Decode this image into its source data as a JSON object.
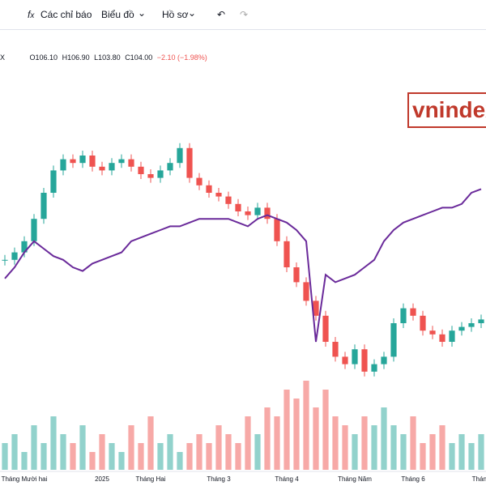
{
  "toolbar": {
    "indicators": "Các chỉ báo",
    "chart": "Biểu đồ",
    "profile": "Hồ sơ"
  },
  "legend": {
    "symbol": "X",
    "open": "O106.10",
    "high": "H106.90",
    "low": "L103.80",
    "close": "C104.00",
    "change": "−2.10 (−1.98%)"
  },
  "watermark": "vnindex",
  "chart_data": {
    "type": "candlestick",
    "categories": [
      null,
      null,
      "Tháng Mười hai",
      null,
      null,
      null,
      null,
      null,
      null,
      null,
      "2025",
      null,
      null,
      null,
      null,
      "Tháng Hai",
      null,
      null,
      null,
      null,
      null,
      null,
      "Tháng 3",
      null,
      null,
      null,
      null,
      null,
      null,
      "Tháng 4",
      null,
      null,
      null,
      null,
      null,
      null,
      "Tháng Năm",
      null,
      null,
      null,
      null,
      null,
      "Tháng 6",
      null,
      null,
      null,
      null,
      null,
      null,
      "Tháng"
    ],
    "values": [
      132,
      134,
      137,
      143,
      150,
      156,
      159,
      158,
      160,
      157,
      156,
      158,
      159,
      157,
      155,
      154,
      156,
      158,
      162,
      154,
      152,
      150,
      149,
      147,
      145,
      144,
      146,
      143,
      137,
      130,
      126,
      121,
      117,
      110,
      106,
      104,
      108,
      102,
      104,
      106,
      115,
      119,
      117,
      113,
      112,
      110,
      113,
      114,
      115,
      116
    ],
    "color_up": "#26a69a",
    "color_down": "#ef5350",
    "ylim": [
      80,
      180
    ],
    "line": {
      "color": "#6a2a9a",
      "axis": "y2",
      "values": [
        47,
        50,
        54,
        57,
        55,
        53,
        52,
        50,
        49,
        51,
        52,
        53,
        54,
        57,
        58,
        59,
        60,
        61,
        61,
        62,
        63,
        63,
        63,
        63,
        62,
        61,
        63,
        64,
        63,
        62,
        60,
        57,
        30,
        48,
        46,
        47,
        48,
        50,
        52,
        57,
        60,
        62,
        63,
        64,
        65,
        66,
        66,
        67,
        70,
        71
      ]
    },
    "y2lim": [
      0,
      100
    ],
    "volume": {
      "values": [
        3,
        4,
        2,
        5,
        3,
        6,
        4,
        3,
        5,
        2,
        4,
        3,
        2,
        5,
        3,
        6,
        3,
        4,
        2,
        3,
        4,
        3,
        5,
        4,
        3,
        6,
        4,
        7,
        6,
        9,
        8,
        10,
        7,
        9,
        6,
        5,
        4,
        6,
        5,
        7,
        5,
        4,
        6,
        3,
        4,
        5,
        3,
        4,
        3,
        4
      ],
      "colors": [
        "#26a69a",
        "#ef5350"
      ],
      "lim": [
        0,
        10
      ]
    }
  }
}
